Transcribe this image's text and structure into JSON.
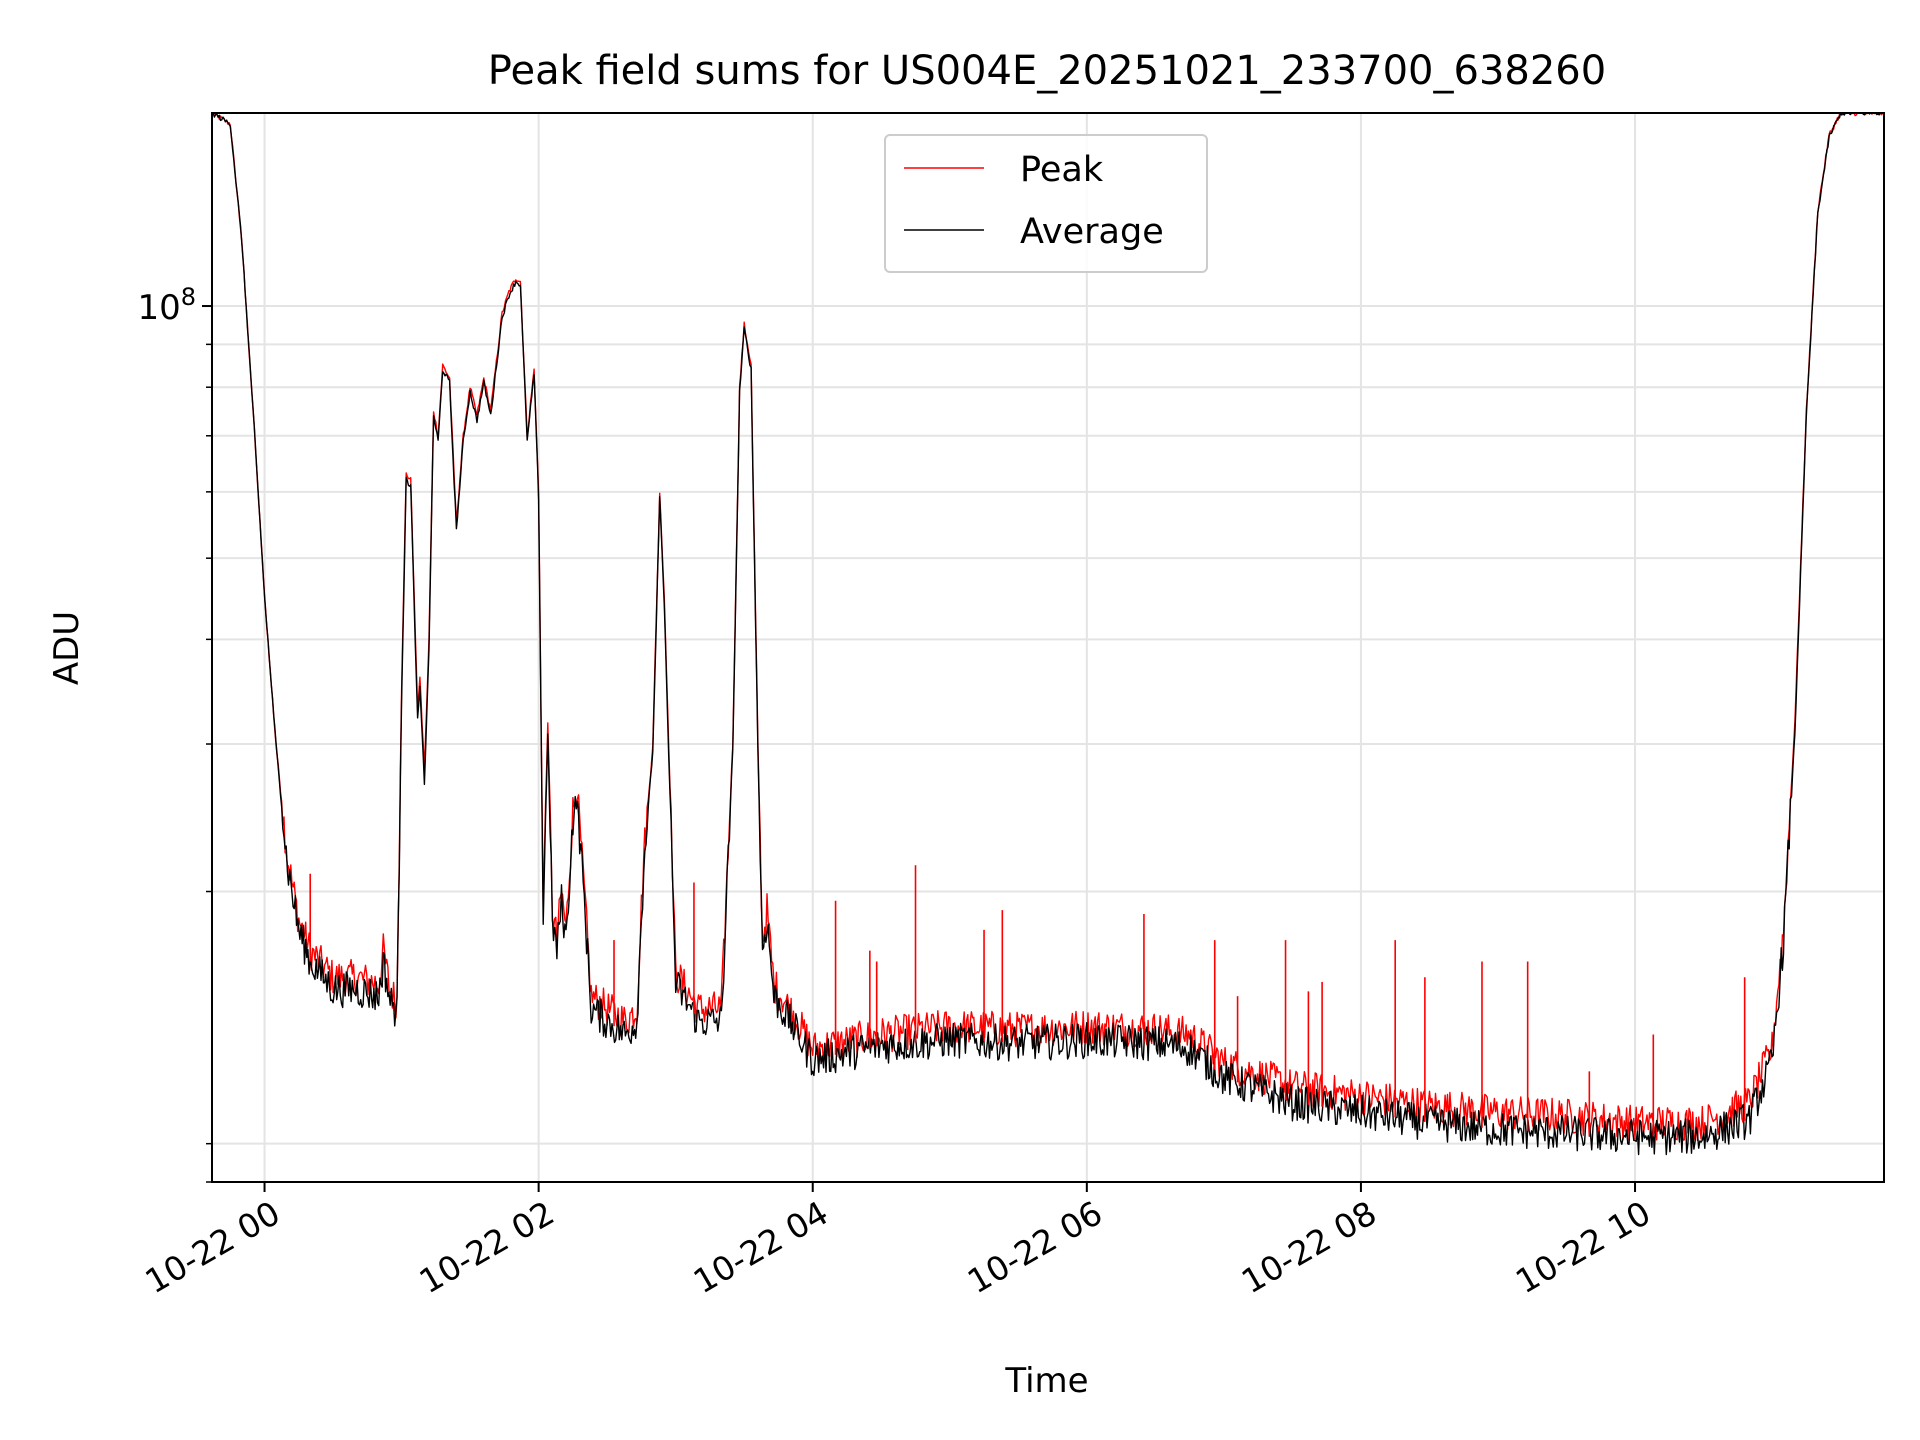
{
  "chart_data": {
    "type": "line",
    "title": "Peak field sums for US004E_20251021_233700_638260",
    "xlabel": "Time",
    "ylabel": "ADU",
    "y_scale": "log",
    "grid": true,
    "legend_position": "top-center",
    "x_ticks": [
      "10-22 00",
      "10-22 02",
      "10-22 04",
      "10-22 06",
      "10-22 08",
      "10-22 10"
    ],
    "y_tick_label": {
      "base": "10",
      "exponent": "8"
    },
    "xlim": [
      "2025-10-21 23:37",
      "2025-10-22 11:49"
    ],
    "ylim": [
      9000000,
      170000000
    ],
    "series": [
      {
        "name": "Peak",
        "color": "#ff0000",
        "points": [
          [
            "2025-10-21 23:37",
            170000000
          ],
          [
            "2025-10-21 23:45",
            165000000
          ],
          [
            "2025-10-21 23:50",
            120000000
          ],
          [
            "2025-10-21 23:55",
            75000000
          ],
          [
            "2025-10-22 00:00",
            45000000
          ],
          [
            "2025-10-22 00:05",
            30000000
          ],
          [
            "2025-10-22 00:10",
            22000000
          ],
          [
            "2025-10-22 00:15",
            18500000
          ],
          [
            "2025-10-22 00:20",
            17000000
          ],
          [
            "2025-10-22 00:30",
            15800000
          ],
          [
            "2025-10-22 00:40",
            15800000
          ],
          [
            "2025-10-22 00:50",
            15500000
          ],
          [
            "2025-10-22 00:52",
            17000000
          ],
          [
            "2025-10-22 00:55",
            15200000
          ],
          [
            "2025-10-22 00:58",
            14800000
          ],
          [
            "2025-10-22 01:00",
            35000000
          ],
          [
            "2025-10-22 01:02",
            63000000
          ],
          [
            "2025-10-22 01:04",
            62000000
          ],
          [
            "2025-10-22 01:07",
            33000000
          ],
          [
            "2025-10-22 01:08",
            36000000
          ],
          [
            "2025-10-22 01:10",
            28000000
          ],
          [
            "2025-10-22 01:12",
            40000000
          ],
          [
            "2025-10-22 01:14",
            75000000
          ],
          [
            "2025-10-22 01:16",
            70000000
          ],
          [
            "2025-10-22 01:18",
            85000000
          ],
          [
            "2025-10-22 01:21",
            82000000
          ],
          [
            "2025-10-22 01:24",
            55000000
          ],
          [
            "2025-10-22 01:27",
            70000000
          ],
          [
            "2025-10-22 01:30",
            80000000
          ],
          [
            "2025-10-22 01:33",
            74000000
          ],
          [
            "2025-10-22 01:36",
            82000000
          ],
          [
            "2025-10-22 01:39",
            75000000
          ],
          [
            "2025-10-22 01:42",
            88000000
          ],
          [
            "2025-10-22 01:44",
            98000000
          ],
          [
            "2025-10-22 01:47",
            104000000
          ],
          [
            "2025-10-22 01:50",
            108000000
          ],
          [
            "2025-10-22 01:52",
            107000000
          ],
          [
            "2025-10-22 01:55",
            70000000
          ],
          [
            "2025-10-22 01:58",
            84000000
          ],
          [
            "2025-10-22 02:00",
            60000000
          ],
          [
            "2025-10-22 02:02",
            19000000
          ],
          [
            "2025-10-22 02:04",
            32000000
          ],
          [
            "2025-10-22 02:06",
            19000000
          ],
          [
            "2025-10-22 02:08",
            17500000
          ],
          [
            "2025-10-22 02:10",
            20000000
          ],
          [
            "2025-10-22 02:12",
            18000000
          ],
          [
            "2025-10-22 02:15",
            25000000
          ],
          [
            "2025-10-22 02:17",
            26000000
          ],
          [
            "2025-10-22 02:20",
            20000000
          ],
          [
            "2025-10-22 02:23",
            15000000
          ],
          [
            "2025-10-22 02:30",
            14500000
          ],
          [
            "2025-10-22 02:38",
            14000000
          ],
          [
            "2025-10-22 02:43",
            14500000
          ],
          [
            "2025-10-22 02:46",
            22000000
          ],
          [
            "2025-10-22 02:50",
            30000000
          ],
          [
            "2025-10-22 02:53",
            60000000
          ],
          [
            "2025-10-22 02:55",
            45000000
          ],
          [
            "2025-10-22 03:00",
            16000000
          ],
          [
            "2025-10-22 03:10",
            14500000
          ],
          [
            "2025-10-22 03:20",
            14500000
          ],
          [
            "2025-10-22 03:25",
            30000000
          ],
          [
            "2025-10-22 03:28",
            80000000
          ],
          [
            "2025-10-22 03:30",
            95000000
          ],
          [
            "2025-10-22 03:33",
            85000000
          ],
          [
            "2025-10-22 03:36",
            30000000
          ],
          [
            "2025-10-22 03:38",
            17500000
          ],
          [
            "2025-10-22 03:40",
            19000000
          ],
          [
            "2025-10-22 03:43",
            15500000
          ],
          [
            "2025-10-22 03:50",
            14500000
          ],
          [
            "2025-10-22 04:00",
            13000000
          ],
          [
            "2025-10-22 04:30",
            13500000
          ],
          [
            "2025-10-22 05:00",
            13800000
          ],
          [
            "2025-10-22 05:30",
            13700000
          ],
          [
            "2025-10-22 06:00",
            13800000
          ],
          [
            "2025-10-22 06:30",
            13700000
          ],
          [
            "2025-10-22 06:45",
            13500000
          ],
          [
            "2025-10-22 07:00",
            12500000
          ],
          [
            "2025-10-22 07:30",
            11700000
          ],
          [
            "2025-10-22 08:00",
            11400000
          ],
          [
            "2025-10-22 08:30",
            11100000
          ],
          [
            "2025-10-22 09:00",
            10900000
          ],
          [
            "2025-10-22 09:30",
            10800000
          ],
          [
            "2025-10-22 10:00",
            10600000
          ],
          [
            "2025-10-22 10:30",
            10600000
          ],
          [
            "2025-10-22 10:50",
            11200000
          ],
          [
            "2025-10-22 11:00",
            13000000
          ],
          [
            "2025-10-22 11:05",
            18000000
          ],
          [
            "2025-10-22 11:10",
            32000000
          ],
          [
            "2025-10-22 11:15",
            75000000
          ],
          [
            "2025-10-22 11:20",
            130000000
          ],
          [
            "2025-10-22 11:25",
            160000000
          ],
          [
            "2025-10-22 11:30",
            170000000
          ],
          [
            "2025-10-22 11:49",
            170000000
          ]
        ],
        "spikes": [
          [
            "2025-10-22 00:20",
            21000000
          ],
          [
            "2025-10-22 02:33",
            17500000
          ],
          [
            "2025-10-22 03:08",
            20500000
          ],
          [
            "2025-10-22 04:10",
            19500000
          ],
          [
            "2025-10-22 04:25",
            17000000
          ],
          [
            "2025-10-22 04:28",
            16500000
          ],
          [
            "2025-10-22 04:45",
            21500000
          ],
          [
            "2025-10-22 05:15",
            18000000
          ],
          [
            "2025-10-22 05:23",
            19000000
          ],
          [
            "2025-10-22 06:25",
            18800000
          ],
          [
            "2025-10-22 06:56",
            17500000
          ],
          [
            "2025-10-22 07:06",
            15000000
          ],
          [
            "2025-10-22 07:27",
            17500000
          ],
          [
            "2025-10-22 07:37",
            15200000
          ],
          [
            "2025-10-22 07:43",
            15600000
          ],
          [
            "2025-10-22 08:15",
            17500000
          ],
          [
            "2025-10-22 08:28",
            15800000
          ],
          [
            "2025-10-22 08:53",
            16500000
          ],
          [
            "2025-10-22 09:13",
            16500000
          ],
          [
            "2025-10-22 09:40",
            12200000
          ],
          [
            "2025-10-22 10:08",
            13500000
          ],
          [
            "2025-10-22 10:48",
            15800000
          ]
        ]
      },
      {
        "name": "Average",
        "color": "#000000",
        "points": [
          [
            "2025-10-21 23:37",
            170000000
          ],
          [
            "2025-10-21 23:45",
            165000000
          ],
          [
            "2025-10-21 23:50",
            120000000
          ],
          [
            "2025-10-21 23:55",
            75000000
          ],
          [
            "2025-10-22 00:00",
            45000000
          ],
          [
            "2025-10-22 00:05",
            30000000
          ],
          [
            "2025-10-22 00:10",
            21500000
          ],
          [
            "2025-10-22 00:15",
            18000000
          ],
          [
            "2025-10-22 00:20",
            16500000
          ],
          [
            "2025-10-22 00:30",
            15300000
          ],
          [
            "2025-10-22 00:40",
            15300000
          ],
          [
            "2025-10-22 00:50",
            15000000
          ],
          [
            "2025-10-22 00:52",
            16500000
          ],
          [
            "2025-10-22 00:55",
            14800000
          ],
          [
            "2025-10-22 00:58",
            14400000
          ],
          [
            "2025-10-22 01:00",
            34000000
          ],
          [
            "2025-10-22 01:02",
            62000000
          ],
          [
            "2025-10-22 01:04",
            61000000
          ],
          [
            "2025-10-22 01:07",
            32000000
          ],
          [
            "2025-10-22 01:08",
            35000000
          ],
          [
            "2025-10-22 01:10",
            27000000
          ],
          [
            "2025-10-22 01:12",
            39000000
          ],
          [
            "2025-10-22 01:14",
            74000000
          ],
          [
            "2025-10-22 01:16",
            69000000
          ],
          [
            "2025-10-22 01:18",
            84000000
          ],
          [
            "2025-10-22 01:21",
            81000000
          ],
          [
            "2025-10-22 01:24",
            54000000
          ],
          [
            "2025-10-22 01:27",
            69000000
          ],
          [
            "2025-10-22 01:30",
            79000000
          ],
          [
            "2025-10-22 01:33",
            73000000
          ],
          [
            "2025-10-22 01:36",
            81000000
          ],
          [
            "2025-10-22 01:39",
            74000000
          ],
          [
            "2025-10-22 01:42",
            87000000
          ],
          [
            "2025-10-22 01:44",
            97000000
          ],
          [
            "2025-10-22 01:47",
            103000000
          ],
          [
            "2025-10-22 01:50",
            107000000
          ],
          [
            "2025-10-22 01:52",
            106000000
          ],
          [
            "2025-10-22 01:55",
            69000000
          ],
          [
            "2025-10-22 01:58",
            83000000
          ],
          [
            "2025-10-22 02:00",
            59000000
          ],
          [
            "2025-10-22 02:02",
            18500000
          ],
          [
            "2025-10-22 02:04",
            31000000
          ],
          [
            "2025-10-22 02:06",
            18500000
          ],
          [
            "2025-10-22 02:08",
            17000000
          ],
          [
            "2025-10-22 02:10",
            19500000
          ],
          [
            "2025-10-22 02:12",
            17500000
          ],
          [
            "2025-10-22 02:15",
            24500000
          ],
          [
            "2025-10-22 02:17",
            25500000
          ],
          [
            "2025-10-22 02:20",
            19500000
          ],
          [
            "2025-10-22 02:23",
            14500000
          ],
          [
            "2025-10-22 02:30",
            14000000
          ],
          [
            "2025-10-22 02:38",
            13500000
          ],
          [
            "2025-10-22 02:43",
            14000000
          ],
          [
            "2025-10-22 02:46",
            21500000
          ],
          [
            "2025-10-22 02:50",
            29500000
          ],
          [
            "2025-10-22 02:53",
            59000000
          ],
          [
            "2025-10-22 02:55",
            44000000
          ],
          [
            "2025-10-22 03:00",
            15500000
          ],
          [
            "2025-10-22 03:10",
            14000000
          ],
          [
            "2025-10-22 03:20",
            14000000
          ],
          [
            "2025-10-22 03:25",
            29500000
          ],
          [
            "2025-10-22 03:28",
            79000000
          ],
          [
            "2025-10-22 03:30",
            94000000
          ],
          [
            "2025-10-22 03:33",
            84000000
          ],
          [
            "2025-10-22 03:36",
            29500000
          ],
          [
            "2025-10-22 03:38",
            17000000
          ],
          [
            "2025-10-22 03:40",
            18500000
          ],
          [
            "2025-10-22 03:43",
            15000000
          ],
          [
            "2025-10-22 03:50",
            14000000
          ],
          [
            "2025-10-22 04:00",
            12600000
          ],
          [
            "2025-10-22 04:30",
            13100000
          ],
          [
            "2025-10-22 05:00",
            13300000
          ],
          [
            "2025-10-22 05:30",
            13200000
          ],
          [
            "2025-10-22 06:00",
            13300000
          ],
          [
            "2025-10-22 06:30",
            13200000
          ],
          [
            "2025-10-22 06:45",
            13000000
          ],
          [
            "2025-10-22 07:00",
            12000000
          ],
          [
            "2025-10-22 07:30",
            11200000
          ],
          [
            "2025-10-22 08:00",
            10900000
          ],
          [
            "2025-10-22 08:30",
            10600000
          ],
          [
            "2025-10-22 09:00",
            10400000
          ],
          [
            "2025-10-22 09:30",
            10300000
          ],
          [
            "2025-10-22 10:00",
            10200000
          ],
          [
            "2025-10-22 10:30",
            10200000
          ],
          [
            "2025-10-22 10:50",
            10700000
          ],
          [
            "2025-10-22 11:00",
            12500000
          ],
          [
            "2025-10-22 11:05",
            17500000
          ],
          [
            "2025-10-22 11:10",
            31000000
          ],
          [
            "2025-10-22 11:15",
            74000000
          ],
          [
            "2025-10-22 11:20",
            129000000
          ],
          [
            "2025-10-22 11:25",
            159000000
          ],
          [
            "2025-10-22 11:30",
            170000000
          ],
          [
            "2025-10-22 11:49",
            170000000
          ]
        ]
      }
    ]
  }
}
